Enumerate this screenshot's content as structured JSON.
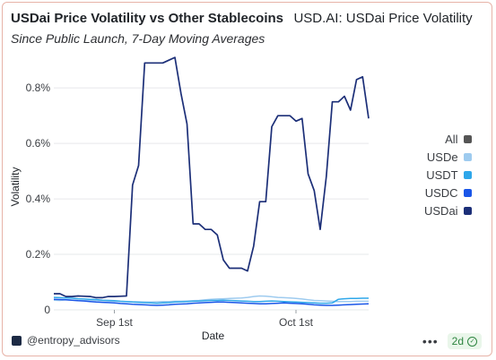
{
  "header": {
    "title": "USDai Price Volatility vs Other Stablecoins",
    "title_secondary": "USD.AI: USDai Price Volatility",
    "subtitle": "Since Public Launch, 7-Day Moving Averages"
  },
  "chart_data": {
    "type": "line",
    "xlabel": "Date",
    "ylabel": "Volatility",
    "ylim": [
      0,
      0.0092
    ],
    "yticks": [
      0,
      0.002,
      0.004,
      0.006,
      0.008
    ],
    "ytick_labels": [
      "0",
      "0.2%",
      "0.4%",
      "0.6%",
      "0.8%"
    ],
    "xticks": [
      "Sep 1st",
      "Oct 1st"
    ],
    "grid": "horizontal",
    "legend_position": "right",
    "x": [
      "2025-08-22",
      "2025-08-23",
      "2025-08-24",
      "2025-08-25",
      "2025-08-26",
      "2025-08-27",
      "2025-08-28",
      "2025-08-29",
      "2025-08-30",
      "2025-08-31",
      "2025-09-01",
      "2025-09-02",
      "2025-09-03",
      "2025-09-04",
      "2025-09-05",
      "2025-09-06",
      "2025-09-07",
      "2025-09-08",
      "2025-09-09",
      "2025-09-10",
      "2025-09-11",
      "2025-09-12",
      "2025-09-13",
      "2025-09-14",
      "2025-09-15",
      "2025-09-16",
      "2025-09-17",
      "2025-09-18",
      "2025-09-19",
      "2025-09-20",
      "2025-09-21",
      "2025-09-22",
      "2025-09-23",
      "2025-09-24",
      "2025-09-25",
      "2025-09-26",
      "2025-09-27",
      "2025-09-28",
      "2025-09-29",
      "2025-09-30",
      "2025-10-01",
      "2025-10-02",
      "2025-10-03",
      "2025-10-04",
      "2025-10-05",
      "2025-10-06",
      "2025-10-07",
      "2025-10-08",
      "2025-10-09",
      "2025-10-10",
      "2025-10-11",
      "2025-10-12",
      "2025-10-13"
    ],
    "series": [
      {
        "name": "USDai",
        "color": "#1c2f78",
        "values": [
          0.00058,
          0.00058,
          0.00048,
          0.00048,
          0.0005,
          0.00049,
          0.00048,
          0.00044,
          0.00044,
          0.00048,
          0.00048,
          0.00049,
          0.0005,
          0.0045,
          0.0052,
          0.0089,
          0.0089,
          0.0089,
          0.0089,
          0.009,
          0.0091,
          0.0078,
          0.0067,
          0.0031,
          0.0031,
          0.0029,
          0.0029,
          0.0027,
          0.0018,
          0.0015,
          0.0015,
          0.0015,
          0.0014,
          0.0023,
          0.0039,
          0.0039,
          0.0066,
          0.007,
          0.007,
          0.007,
          0.0068,
          0.0069,
          0.0049,
          0.0043,
          0.0029,
          0.0048,
          0.0075,
          0.0075,
          0.0077,
          0.0072,
          0.0083,
          0.0084,
          0.0069
        ]
      },
      {
        "name": "USDC",
        "color": "#1a56e8",
        "values": [
          0.00038,
          0.00037,
          0.00036,
          0.00035,
          0.00033,
          0.00032,
          0.0003,
          0.00028,
          0.00027,
          0.00026,
          0.00025,
          0.00023,
          0.00022,
          0.0002,
          0.00019,
          0.00018,
          0.00017,
          0.00016,
          0.00017,
          0.00018,
          0.0002,
          0.00021,
          0.00022,
          0.00024,
          0.00025,
          0.00026,
          0.00027,
          0.00028,
          0.00028,
          0.00027,
          0.00026,
          0.00025,
          0.00024,
          0.00023,
          0.00022,
          0.00022,
          0.00023,
          0.00024,
          0.00025,
          0.00024,
          0.00023,
          0.00022,
          0.0002,
          0.00018,
          0.00017,
          0.00016,
          0.00016,
          0.00017,
          0.00018,
          0.00019,
          0.0002,
          0.00021,
          0.00022
        ]
      },
      {
        "name": "USDT",
        "color": "#2ea7ea",
        "values": [
          0.00045,
          0.00044,
          0.00043,
          0.00042,
          0.0004,
          0.00039,
          0.00038,
          0.00037,
          0.00035,
          0.00034,
          0.00033,
          0.00031,
          0.0003,
          0.00028,
          0.00027,
          0.00026,
          0.00025,
          0.00024,
          0.00025,
          0.00026,
          0.00028,
          0.00029,
          0.0003,
          0.00031,
          0.00032,
          0.00033,
          0.00034,
          0.00034,
          0.00035,
          0.00034,
          0.00033,
          0.00032,
          0.00031,
          0.0003,
          0.0003,
          0.00031,
          0.00032,
          0.00031,
          0.0003,
          0.00029,
          0.00028,
          0.00027,
          0.00026,
          0.00025,
          0.00024,
          0.00024,
          0.00025,
          0.00038,
          0.0004,
          0.00041,
          0.00041,
          0.00042,
          0.00042
        ]
      },
      {
        "name": "USDe",
        "color": "#9ecbef",
        "values": [
          0.00035,
          0.00034,
          0.00036,
          0.00035,
          0.00034,
          0.00033,
          0.00035,
          0.00034,
          0.00033,
          0.00032,
          0.00031,
          0.0003,
          0.0003,
          0.00029,
          0.00029,
          0.00028,
          0.00028,
          0.00029,
          0.0003,
          0.0003,
          0.00031,
          0.00031,
          0.00032,
          0.00033,
          0.00034,
          0.00036,
          0.00038,
          0.00039,
          0.0004,
          0.00041,
          0.00042,
          0.00043,
          0.00045,
          0.00048,
          0.0005,
          0.00049,
          0.00047,
          0.00045,
          0.00044,
          0.00043,
          0.00041,
          0.00039,
          0.00036,
          0.00034,
          0.00033,
          0.00032,
          0.00031,
          0.0003,
          0.0003,
          0.0003,
          0.00031,
          0.00031,
          0.00031
        ]
      }
    ]
  },
  "legend": {
    "items": [
      {
        "label": "All",
        "color": "#555555"
      },
      {
        "label": "USDe",
        "color": "#9ecbef"
      },
      {
        "label": "USDT",
        "color": "#2ea7ea"
      },
      {
        "label": "USDC",
        "color": "#1a56e8"
      },
      {
        "label": "USDai",
        "color": "#1c2f78"
      }
    ]
  },
  "footer": {
    "handle": "@entropy_advisors",
    "more_icon": "more-dots-icon",
    "badge": "2d",
    "badge_icon": "check-circle-icon"
  }
}
